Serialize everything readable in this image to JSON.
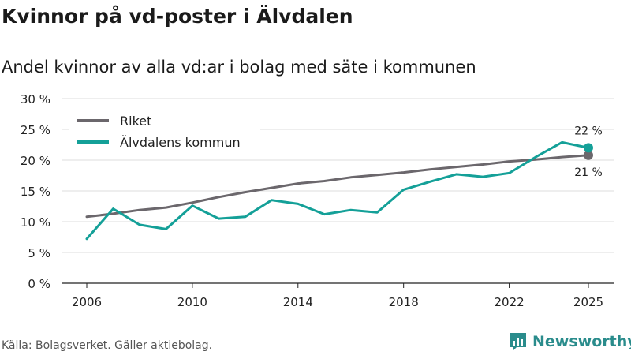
{
  "title": "Kvinnor på vd-poster i Älvdalen",
  "subtitle": "Andel kvinnor av alla vd:ar i bolag med säte i kommunen",
  "source": "Källa: Bolagsverket. Gäller aktiebolag.",
  "brand": "Newsworthy",
  "chart_data": {
    "type": "line",
    "x": [
      2006,
      2007,
      2008,
      2009,
      2010,
      2011,
      2012,
      2013,
      2014,
      2015,
      2016,
      2017,
      2018,
      2019,
      2020,
      2021,
      2022,
      2023,
      2024,
      2025
    ],
    "series": [
      {
        "name": "Riket",
        "color": "#6b676c",
        "values": [
          10.8,
          11.3,
          11.9,
          12.3,
          13.1,
          14.0,
          14.8,
          15.5,
          16.2,
          16.6,
          17.2,
          17.6,
          18.0,
          18.5,
          18.9,
          19.3,
          19.8,
          20.1,
          20.5,
          20.8
        ]
      },
      {
        "name": "Älvdalens kommun",
        "color": "#14a098",
        "values": [
          7.2,
          12.1,
          9.5,
          8.8,
          12.6,
          10.5,
          10.8,
          13.5,
          12.9,
          11.2,
          11.9,
          11.5,
          15.2,
          16.5,
          17.7,
          17.3,
          17.9,
          20.5,
          22.9,
          22.0
        ]
      }
    ],
    "end_labels": [
      "21 %",
      "22 %"
    ],
    "y_ticks": [
      0,
      5,
      10,
      15,
      20,
      25,
      30
    ],
    "y_tick_labels": [
      "0 %",
      "5 %",
      "10 %",
      "15 %",
      "20 %",
      "25 %",
      "30 %"
    ],
    "x_ticks": [
      2006,
      2010,
      2014,
      2018,
      2022,
      2025
    ],
    "x_tick_labels": [
      "2006",
      "2010",
      "2014",
      "2018",
      "2022",
      "2025"
    ],
    "ylim": [
      0,
      30
    ],
    "xlim": [
      2006,
      2025
    ],
    "grid": true,
    "legend_position": "top-left"
  }
}
